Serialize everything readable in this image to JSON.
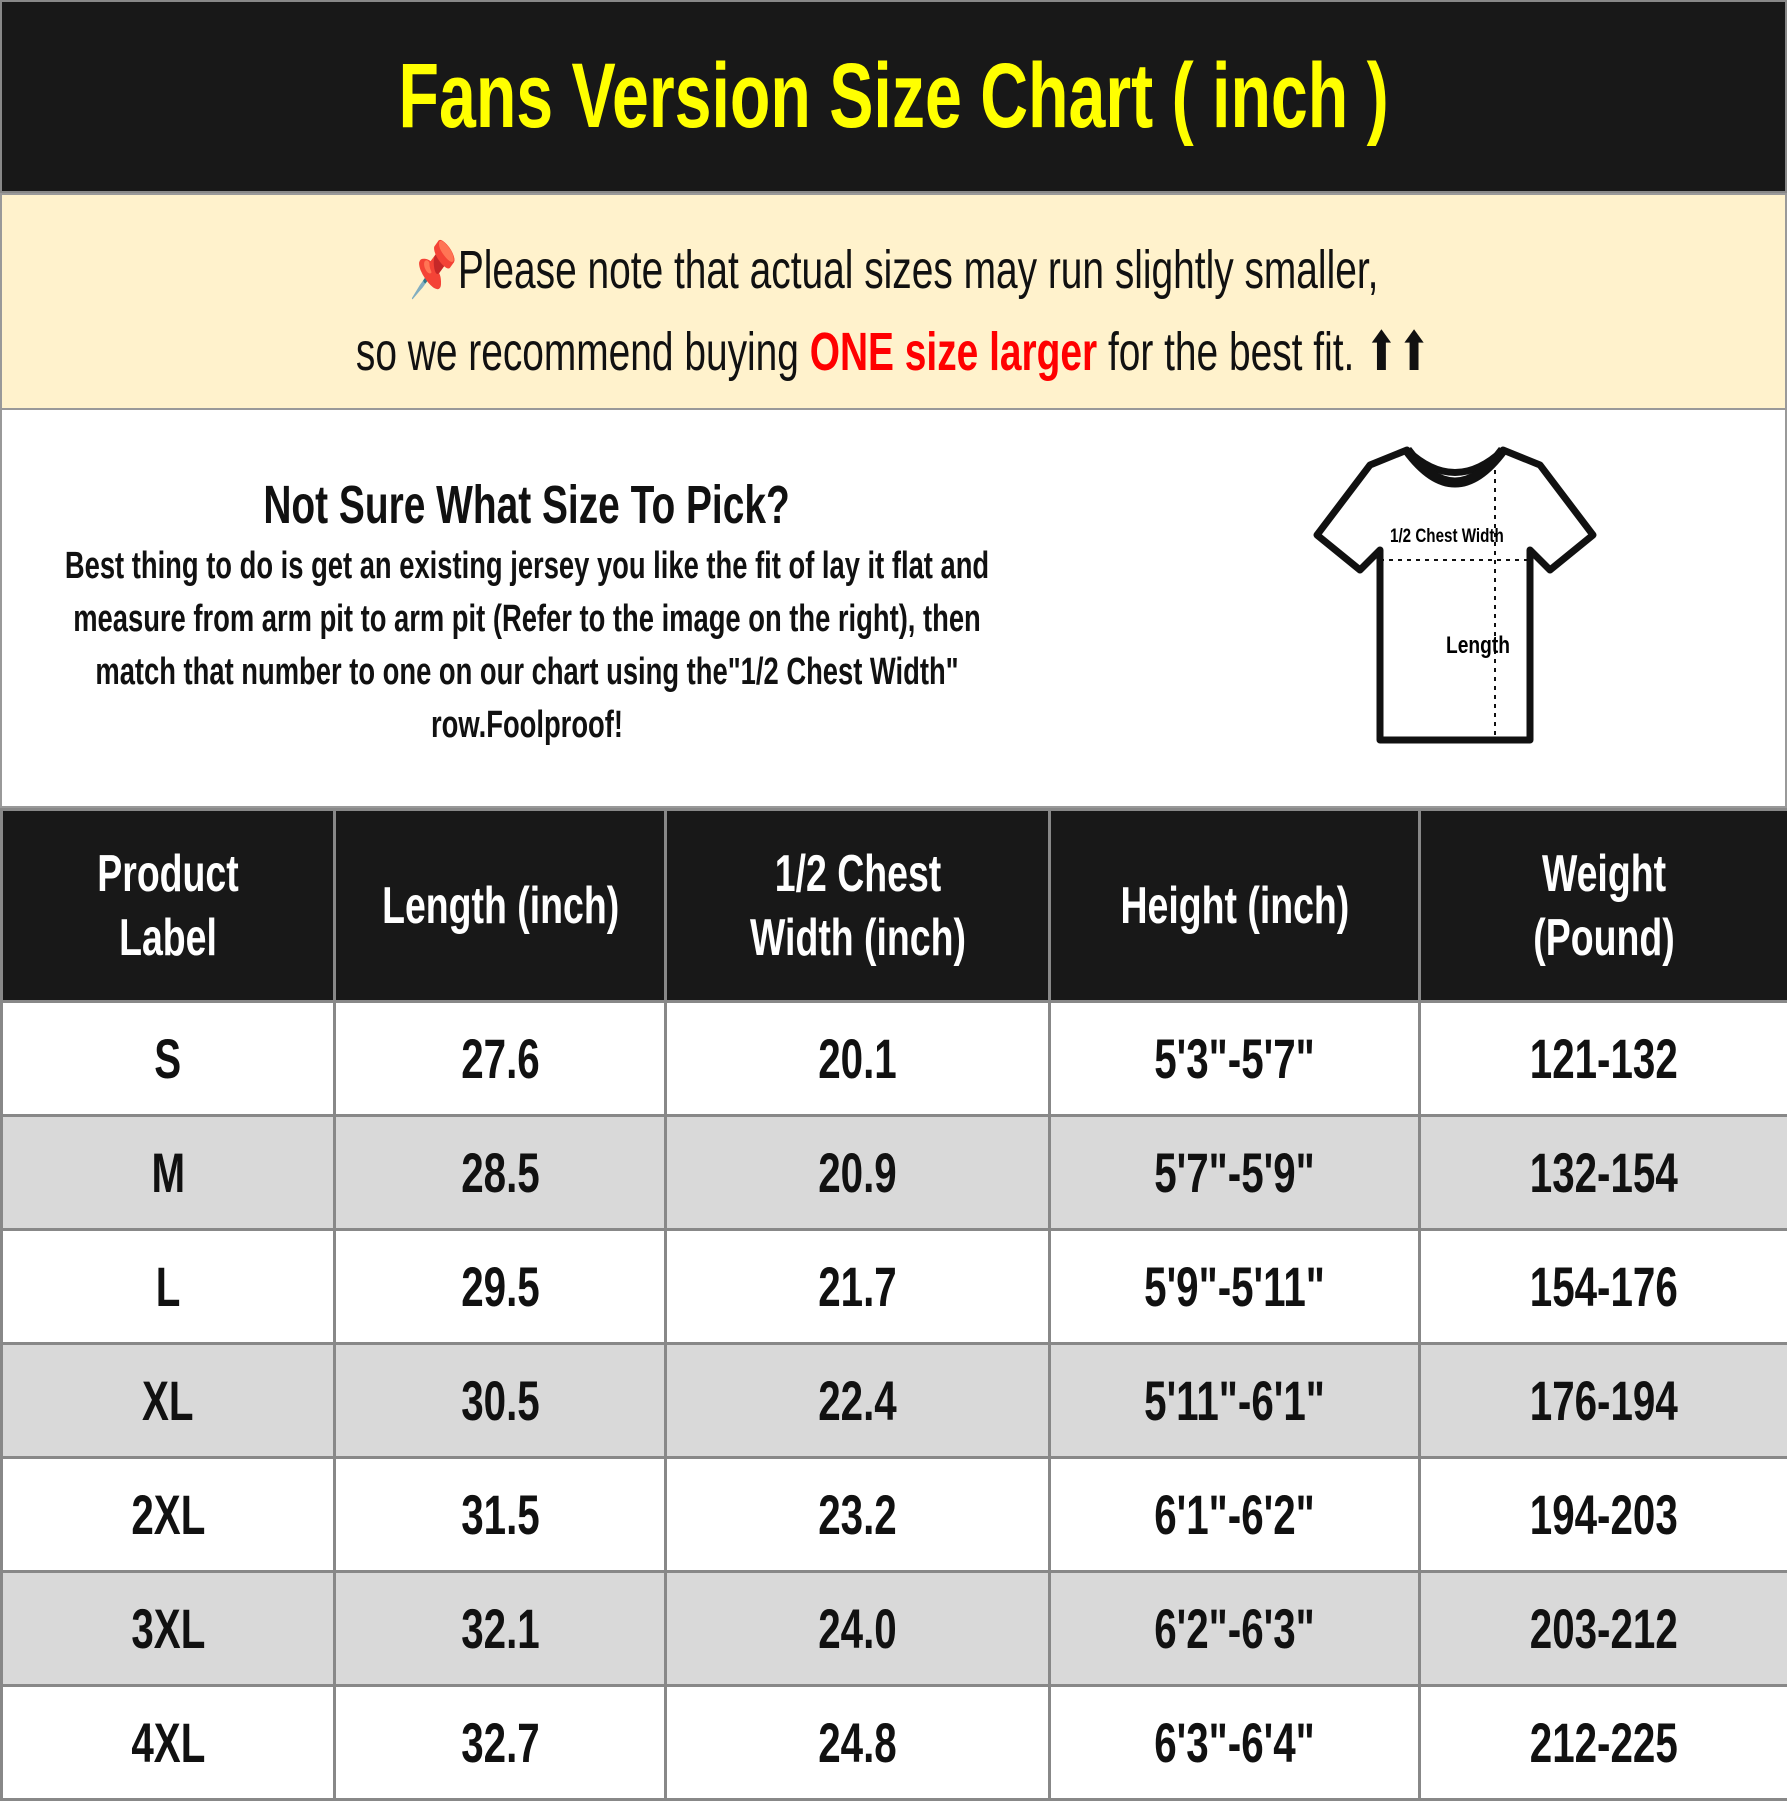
{
  "title": "Fans Version Size Chart ( inch )",
  "note": {
    "line1": "Please note that actual sizes may run slightly smaller,",
    "line2_pre": "so we recommend buying ",
    "line2_highlight": "ONE size larger",
    "line2_post": " for the best fit.",
    "icon": "pushpin-icon",
    "arrows": "⬆⬆"
  },
  "info": {
    "heading": "Not Sure What Size To Pick?",
    "body": "Best thing to do is get an existing jersey you like the fit of lay it flat and measure from arm pit to arm pit (Refer to the image on the right), then match that number to one on our chart using the\"1/2 Chest Width\" row.Foolproof!",
    "diagram": {
      "chest_label": "1/2 Chest Width",
      "length_label": "Length"
    }
  },
  "table": {
    "headers": [
      "Product Label",
      "Length (inch)",
      "1/2 Chest Width (inch)",
      "Height (inch)",
      "Weight (Pound)"
    ],
    "rows": [
      [
        "S",
        "27.6",
        "20.1",
        "5'3\"-5'7\"",
        "121-132"
      ],
      [
        "M",
        "28.5",
        "20.9",
        "5'7\"-5'9\"",
        "132-154"
      ],
      [
        "L",
        "29.5",
        "21.7",
        "5'9\"-5'11\"",
        "154-176"
      ],
      [
        "XL",
        "30.5",
        "22.4",
        "5'11\"-6'1\"",
        "176-194"
      ],
      [
        "2XL",
        "31.5",
        "23.2",
        "6'1\"-6'2\"",
        "194-203"
      ],
      [
        "3XL",
        "32.1",
        "24.0",
        "6'2\"-6'3\"",
        "203-212"
      ],
      [
        "4XL",
        "32.7",
        "24.8",
        "6'3\"-6'4\"",
        "212-225"
      ]
    ]
  },
  "colors": {
    "title_bg": "#181818",
    "title_text": "#ffff00",
    "note_bg": "#fff2cc",
    "highlight": "#ff0000",
    "alt_row": "#d9d9d9"
  }
}
